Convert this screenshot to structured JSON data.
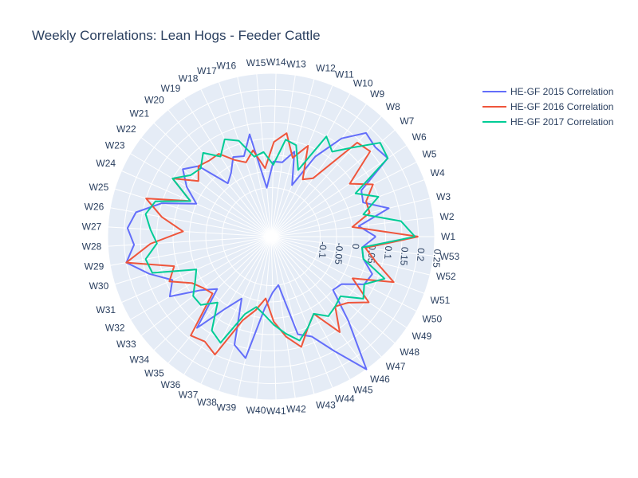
{
  "chart_data": {
    "type": "line",
    "subtype": "polar",
    "title": "Weekly Correlations: Lean Hogs - Feeder Cattle",
    "theta": [
      "W1",
      "W2",
      "W3",
      "W4",
      "W5",
      "W6",
      "W7",
      "W8",
      "W9",
      "W10",
      "W11",
      "W12",
      "W13",
      "W14",
      "W15",
      "W16",
      "W17",
      "W18",
      "W19",
      "W20",
      "W21",
      "W22",
      "W23",
      "W24",
      "W25",
      "W26",
      "W27",
      "W28",
      "W29",
      "W30",
      "W31",
      "W32",
      "W33",
      "W34",
      "W35",
      "W36",
      "W37",
      "W38",
      "W39",
      "W40",
      "W41",
      "W42",
      "W43",
      "W44",
      "W45",
      "W46",
      "W47",
      "W48",
      "W49",
      "W50",
      "W51",
      "W52",
      "W53"
    ],
    "radial_range": [
      -0.25,
      0.25
    ],
    "radial_ticks": [
      -0.1,
      -0.05,
      0,
      0.05,
      0.1,
      0.15,
      0.2,
      0.25
    ],
    "radial_tick_labels": [
      "-0.1",
      "-0.05",
      "0",
      "0.05",
      "0.1",
      "0.15",
      "0.2",
      "0.25"
    ],
    "angular_direction": "counterclockwise",
    "angular_rotation": "W1 at 0° (right)",
    "grid": true,
    "legend_position": "top-right",
    "series": [
      {
        "name": "HE-GF 2015 Correlation",
        "color": "#636efa",
        "values": [
          0.07,
          0.02,
          0.12,
          0.05,
          0.06,
          0.18,
          0.17,
          0.18,
          0.12,
          0.03,
          -0.08,
          0.02,
          -0.02,
          -0.02,
          -0.1,
          0.07,
          0.01,
          0.02,
          -0.02,
          -0.04,
          0.06,
          0.09,
          0.05,
          0.0,
          0.1,
          0.17,
          0.19,
          0.17,
          0.2,
          0.14,
          0.08,
          0.11,
          0.02,
          -0.02,
          0.11,
          0.01,
          -0.04,
          0.1,
          0.13,
          -0.03,
          -0.08,
          -0.1,
          0.06,
          0.08,
          0.15,
          0.25,
          0.1,
          0.0,
          0.01,
          0.07,
          0.08,
          0.04,
          0.03
        ]
      },
      {
        "name": "HE-GF 2016 Correlation",
        "color": "#ef553b",
        "values": [
          0.2,
          0.0,
          0.06,
          0.06,
          0.1,
          0.04,
          0.15,
          0.14,
          -0.03,
          -0.05,
          0.05,
          0.0,
          0.07,
          0.04,
          -0.04,
          0.02,
          -0.01,
          0.01,
          0.05,
          0.05,
          0.06,
          0.03,
          0.1,
          0.02,
          0.15,
          0.09,
          0.02,
          0.12,
          0.2,
          0.06,
          0.09,
          0.03,
          0.01,
          0.0,
          0.14,
          0.13,
          0.15,
          0.02,
          -0.02,
          -0.06,
          0.01,
          0.06,
          0.1,
          0.05,
          0.02,
          0.11,
          0.04,
          0.06,
          0.11,
          0.03,
          0.15,
          0.08,
          0.04
        ]
      },
      {
        "name": "HE-GF 2017 Correlation",
        "color": "#00cc96",
        "values": [
          0.19,
          0.15,
          0.04,
          0.1,
          0.04,
          0.18,
          0.19,
          0.12,
          0.07,
          0.1,
          -0.03,
          0.04,
          0.05,
          -0.03,
          0.01,
          0.0,
          0.06,
          0.08,
          0.04,
          0.08,
          0.05,
          0.06,
          0.1,
          0.02,
          0.12,
          0.14,
          0.12,
          0.1,
          0.14,
          0.13,
          0.0,
          0.02,
          0.05,
          0.05,
          0.01,
          0.09,
          0.11,
          0.0,
          -0.03,
          -0.01,
          0.02,
          0.05,
          0.08,
          0.05,
          0.02,
          0.05,
          0.04,
          0.03,
          0.09,
          0.07,
          0.12,
          0.04,
          0.03
        ]
      }
    ]
  }
}
